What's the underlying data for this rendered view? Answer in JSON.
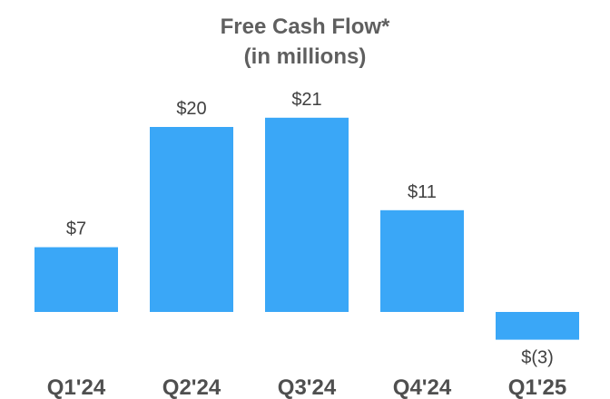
{
  "chart_data": {
    "type": "bar",
    "title": "Free Cash Flow*",
    "subtitle": "(in millions)",
    "categories": [
      "Q1'24",
      "Q2'24",
      "Q3'24",
      "Q4'24",
      "Q1'25"
    ],
    "values": [
      7,
      20,
      21,
      11,
      -3
    ],
    "value_labels": [
      "$7",
      "$20",
      "$21",
      "$11",
      "$(3)"
    ],
    "xlabel": "",
    "ylabel": "",
    "ylim": [
      -3,
      21
    ],
    "grid": false,
    "legend": "none",
    "bar_color": "#3aa7f7"
  }
}
